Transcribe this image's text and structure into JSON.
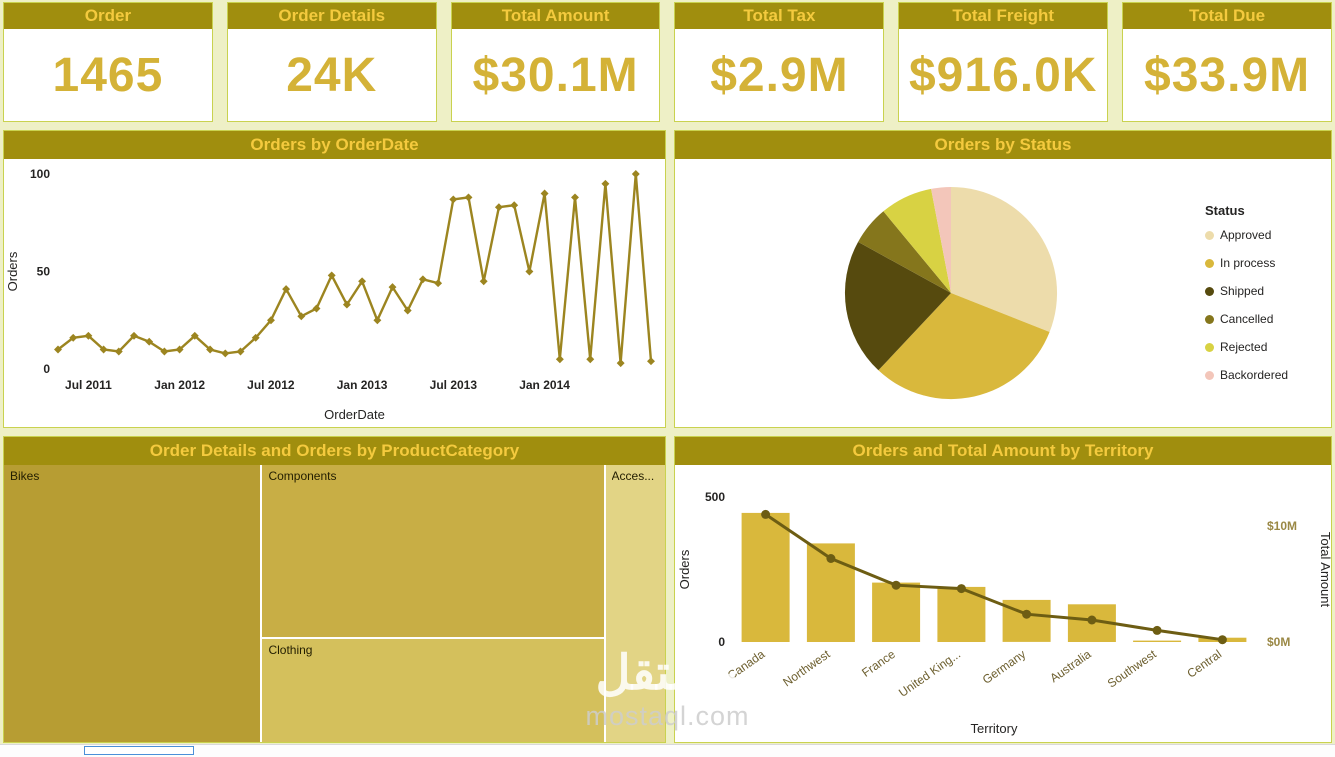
{
  "theme": {
    "header_bg": "#a08e0e",
    "header_text": "#f4ca3e",
    "kpi_value_color": "#d4b237",
    "page_bg": "#eef0c6",
    "accent_gold": "#d9b83c"
  },
  "kpi_cards": [
    {
      "label": "Order",
      "value": "1465"
    },
    {
      "label": "Order Details",
      "value": "24K"
    },
    {
      "label": "Total Amount",
      "value": "$30.1M"
    },
    {
      "label": "Total Tax",
      "value": "$2.9M"
    },
    {
      "label": "Total Freight",
      "value": "$916.0K"
    },
    {
      "label": "Total Due",
      "value": "$33.9M"
    }
  ],
  "watermark": {
    "line1": "مستقل",
    "line2": "mostaql.com"
  },
  "chart_data": [
    {
      "id": "orders_by_orderdate",
      "type": "line",
      "title": "Orders by OrderDate",
      "xlabel": "OrderDate",
      "ylabel": "Orders",
      "ylim": [
        0,
        100
      ],
      "yticks": [
        0,
        50,
        100
      ],
      "x_tick_labels": [
        "Jul 2011",
        "Jan 2012",
        "Jul 2012",
        "Jan 2013",
        "Jul 2013",
        "Jan 2014"
      ],
      "x_tick_indices": [
        2,
        8,
        14,
        20,
        26,
        32
      ],
      "values": [
        10,
        16,
        17,
        10,
        9,
        17,
        14,
        9,
        10,
        17,
        10,
        8,
        9,
        16,
        25,
        41,
        27,
        31,
        48,
        33,
        45,
        25,
        42,
        30,
        46,
        44,
        87,
        88,
        45,
        83,
        84,
        50,
        90,
        5,
        88,
        5,
        95,
        3,
        100,
        4
      ],
      "line_color": "#9c8520",
      "grid": false
    },
    {
      "id": "orders_by_status",
      "type": "pie",
      "title": "Orders by Status",
      "legend_title": "Status",
      "legend_position": "right",
      "slices": [
        {
          "label": "Approved",
          "value": 31,
          "color": "#eddcab"
        },
        {
          "label": "In process",
          "value": 31,
          "color": "#d9b83c"
        },
        {
          "label": "Shipped",
          "value": 21,
          "color": "#564a0e"
        },
        {
          "label": "Cancelled",
          "value": 6,
          "color": "#85761c"
        },
        {
          "label": "Rejected",
          "value": 8,
          "color": "#d8d243"
        },
        {
          "label": "Backordered",
          "value": 3,
          "color": "#f3c6ba"
        }
      ]
    },
    {
      "id": "product_category_treemap",
      "type": "treemap",
      "title": "Order Details and Orders by ProductCategory",
      "nodes": [
        {
          "label": "Bikes",
          "color": "#b79d33",
          "area_pct": 39
        },
        {
          "label": "Components",
          "color": "#c8ae45",
          "area_pct": 32
        },
        {
          "label": "Clothing",
          "color": "#d4c05c",
          "area_pct": 20
        },
        {
          "label": "Acces...",
          "color": "#e2d485",
          "area_pct": 9
        }
      ]
    },
    {
      "id": "territory_combo",
      "type": "combo",
      "title": "Orders and Total Amount by Territory",
      "categories": [
        "Canada",
        "Northwest",
        "France",
        "United King...",
        "Germany",
        "Australia",
        "Southwest",
        "Central"
      ],
      "bar_series": {
        "name": "Orders",
        "values": [
          445,
          340,
          205,
          190,
          145,
          130,
          5,
          15
        ],
        "color": "#d9b83c",
        "axis": "left"
      },
      "line_series": {
        "name": "Total Amount",
        "values": [
          11,
          7.2,
          4.9,
          4.6,
          2.4,
          1.9,
          1.0,
          0.2
        ],
        "unit": "M",
        "color": "#6d5d13",
        "axis": "right"
      },
      "left_axis": {
        "label": "Orders",
        "ticks": [
          0,
          500
        ],
        "max": 500
      },
      "right_axis": {
        "label": "Total Amount",
        "tick_labels": [
          "$0M",
          "$10M"
        ],
        "tick_values": [
          0,
          10
        ],
        "max": 12.5
      },
      "xlabel": "Territory",
      "grid": false
    }
  ]
}
